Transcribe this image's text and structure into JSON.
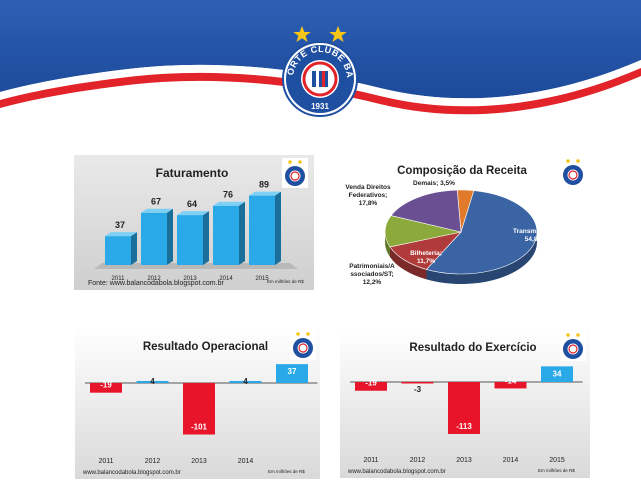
{
  "crest": {
    "text_top": "ESPORTE CLUBE BAHIA",
    "year": "1931",
    "colors": {
      "blue": "#1f4fa0",
      "red": "#e2232a",
      "star": "#f5c518"
    }
  },
  "charts": [
    {
      "type": "bar",
      "title": "Faturamento",
      "categories": [
        "2011",
        "2012",
        "2013",
        "2014",
        "2015"
      ],
      "values": [
        37,
        67,
        64,
        76,
        89
      ],
      "ylim": [
        0,
        100
      ],
      "source": "Fonte: www.balancodabola.blogspot.com.br",
      "units": "Em milhões de R$",
      "bar_color": "#29a9e8"
    },
    {
      "type": "pie",
      "title": "Composição da Receita",
      "slices": [
        {
          "label": "Transmissão",
          "value": 54.8,
          "display": "Transmissao; 54,8%",
          "color": "#3a64a3"
        },
        {
          "label": "Bilheteria",
          "value": 11.7,
          "display": "Bilheteria; 11,7%",
          "color": "#b13a3a"
        },
        {
          "label": "Patrimoniais/Associados/ST",
          "value": 12.2,
          "display": "Patrimoniais/Associados/ST; 12,2%",
          "color": "#8caa3c"
        },
        {
          "label": "Venda Direitos Federativos",
          "value": 17.8,
          "display": "Venda Direitos Federativos; 17,8%",
          "color": "#6a4f92"
        },
        {
          "label": "Demais",
          "value": 3.5,
          "display": "Demais; 3,5%",
          "color": "#e27a2b"
        }
      ]
    },
    {
      "type": "bar",
      "title": "Resultado Operacional",
      "categories": [
        "2011",
        "2012",
        "2013",
        "2014",
        "2015"
      ],
      "values": [
        -19,
        4,
        -101,
        4,
        37
      ],
      "labels": [
        "-19",
        "4",
        "-101",
        "4",
        "37"
      ],
      "ylim": [
        -115,
        45
      ],
      "source": "www.balancodabola.blogspot.com.br",
      "units": "Em milhões de R$"
    },
    {
      "type": "bar",
      "title": "Resultado do Exercício",
      "categories": [
        "2011",
        "2012",
        "2013",
        "2014",
        "2015"
      ],
      "values": [
        -19,
        -3,
        -113,
        -14,
        34
      ],
      "labels": [
        "-19",
        "-3",
        "-113",
        "-14",
        "34"
      ],
      "ylim": [
        -125,
        45
      ],
      "source": "www.balancodabola.blogspot.com.br",
      "units": "Em milhões de R$"
    }
  ]
}
